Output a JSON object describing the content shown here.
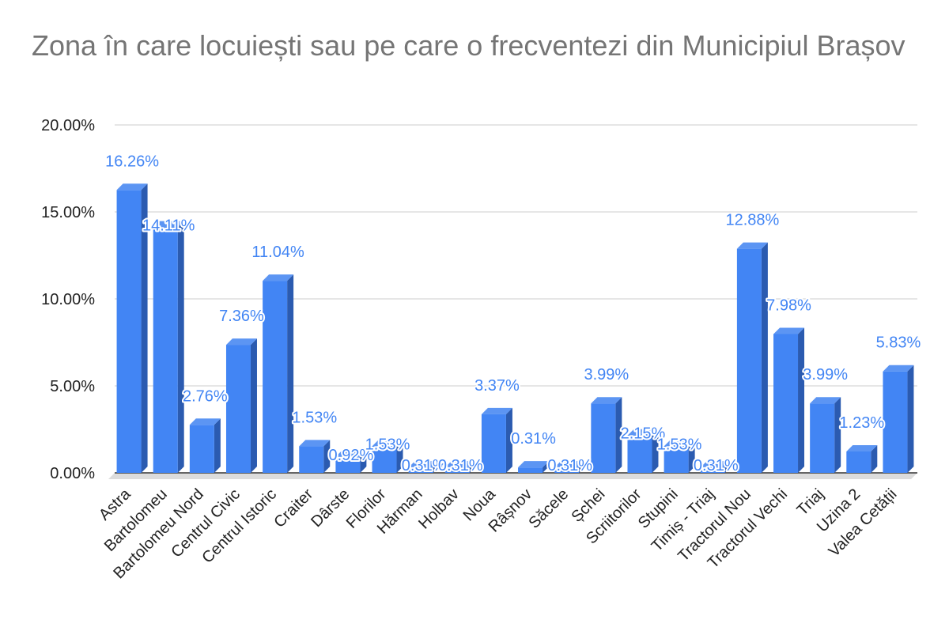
{
  "colors": {
    "bar_front": "#4285f4",
    "bar_top": "#5c95f3",
    "bar_side": "#2b5bb0",
    "grid": "#cccccc",
    "floor": "#dcdcdc",
    "axis": "#333333",
    "title": "#757575",
    "text": "#222222"
  },
  "chart_data": {
    "type": "bar",
    "title": "Zona în care locuiești sau pe care o frecventezi din Municipiul Brașov",
    "xlabel": "",
    "ylabel": "",
    "ylim": [
      0,
      20
    ],
    "yticks": [
      0,
      5,
      10,
      15,
      20
    ],
    "ytick_labels": [
      "0.00%",
      "5.00%",
      "10.00%",
      "15.00%",
      "20.00%"
    ],
    "categories": [
      "Astra",
      "Bartolomeu",
      "Bartolomeu Nord",
      "Centrul Civic",
      "Centrul Istoric",
      "Craiter",
      "Dârste",
      "Florilor",
      "Hărman",
      "Holbav",
      "Noua",
      "Râșnov",
      "Săcele",
      "Șchei",
      "Scriitorilor",
      "Stupini",
      "Timiș - Triaj",
      "Tractorul Nou",
      "Tractorul Vechi",
      "Triaj",
      "Uzina 2",
      "Valea Cetății"
    ],
    "values": [
      16.26,
      14.11,
      2.76,
      7.36,
      11.04,
      1.53,
      0.92,
      1.53,
      0.31,
      0.31,
      3.37,
      0.31,
      0.31,
      3.99,
      2.15,
      1.53,
      0.31,
      12.88,
      7.98,
      3.99,
      1.23,
      5.83
    ],
    "value_labels": [
      "16.26%",
      "14.11%",
      "2.76%",
      "7.36%",
      "11.04%",
      "1.53%",
      "0.92%",
      "1.53%",
      "0.31%",
      "0.31%",
      "3.37%",
      "0.31%",
      "0.31%",
      "3.99%",
      "2.15%",
      "1.53%",
      "0.31%",
      "12.88%",
      "7.98%",
      "3.99%",
      "1.23%",
      "5.83%"
    ],
    "grid": true,
    "legend": "none",
    "style": "3d-columns"
  }
}
